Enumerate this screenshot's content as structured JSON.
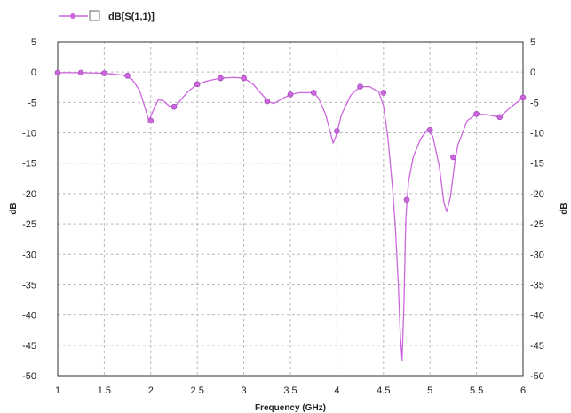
{
  "chart_data": {
    "type": "line",
    "xlabel": "Frequency (GHz)",
    "ylabel": "dB",
    "ylabel_right": "dB",
    "xlim": [
      1,
      6
    ],
    "ylim": [
      -50,
      5
    ],
    "x_ticks": [
      1,
      1.5,
      2,
      2.5,
      3,
      3.5,
      4,
      4.5,
      5,
      5.5,
      6
    ],
    "x_tick_labels": [
      "1",
      "1.5",
      "2",
      "2.5",
      "3",
      "3.5",
      "4",
      "4.5",
      "5",
      "5.5",
      "6"
    ],
    "y_ticks": [
      5,
      0,
      -5,
      -10,
      -15,
      -20,
      -25,
      -30,
      -35,
      -40,
      -45,
      -50
    ],
    "y_tick_labels": [
      "5",
      "0",
      "-5",
      "-10",
      "-15",
      "-20",
      "-25",
      "-30",
      "-35",
      "-40",
      "-45",
      "-50"
    ],
    "grid": true,
    "legend_position": "top-left",
    "series": [
      {
        "name": "dB[S(1,1)]",
        "color": "#cc66dd",
        "curve": [
          [
            1.0,
            -0.1
          ],
          [
            1.25,
            -0.1
          ],
          [
            1.5,
            -0.2
          ],
          [
            1.7,
            -0.5
          ],
          [
            1.8,
            -1.2
          ],
          [
            1.88,
            -3.0
          ],
          [
            1.95,
            -6.5
          ],
          [
            1.98,
            -8.0
          ],
          [
            2.03,
            -6.2
          ],
          [
            2.08,
            -4.6
          ],
          [
            2.13,
            -4.7
          ],
          [
            2.2,
            -5.6
          ],
          [
            2.25,
            -5.7
          ],
          [
            2.3,
            -5.0
          ],
          [
            2.4,
            -3.2
          ],
          [
            2.5,
            -2.0
          ],
          [
            2.6,
            -1.5
          ],
          [
            2.75,
            -1.0
          ],
          [
            2.9,
            -0.9
          ],
          [
            3.0,
            -1.0
          ],
          [
            3.1,
            -2.0
          ],
          [
            3.2,
            -3.8
          ],
          [
            3.27,
            -4.9
          ],
          [
            3.32,
            -5.2
          ],
          [
            3.4,
            -4.5
          ],
          [
            3.5,
            -3.7
          ],
          [
            3.6,
            -3.4
          ],
          [
            3.75,
            -3.4
          ],
          [
            3.8,
            -4.2
          ],
          [
            3.88,
            -7.0
          ],
          [
            3.93,
            -10.0
          ],
          [
            3.96,
            -11.7
          ],
          [
            3.99,
            -10.5
          ],
          [
            4.05,
            -7.0
          ],
          [
            4.15,
            -3.8
          ],
          [
            4.25,
            -2.4
          ],
          [
            4.35,
            -2.4
          ],
          [
            4.45,
            -3.3
          ],
          [
            4.5,
            -5.5
          ],
          [
            4.55,
            -11.0
          ],
          [
            4.6,
            -19.5
          ],
          [
            4.63,
            -26.0
          ],
          [
            4.66,
            -35.0
          ],
          [
            4.68,
            -43.0
          ],
          [
            4.7,
            -47.5
          ],
          [
            4.72,
            -38.0
          ],
          [
            4.74,
            -24.0
          ],
          [
            4.77,
            -18.0
          ],
          [
            4.82,
            -14.0
          ],
          [
            4.9,
            -11.0
          ],
          [
            4.97,
            -9.5
          ],
          [
            5.03,
            -10.5
          ],
          [
            5.1,
            -15.5
          ],
          [
            5.15,
            -21.5
          ],
          [
            5.18,
            -23.0
          ],
          [
            5.22,
            -20.5
          ],
          [
            5.27,
            -14.5
          ],
          [
            5.3,
            -12.0
          ],
          [
            5.4,
            -8.0
          ],
          [
            5.5,
            -6.9
          ],
          [
            5.6,
            -7.0
          ],
          [
            5.75,
            -7.4
          ],
          [
            5.85,
            -6.0
          ],
          [
            6.0,
            -4.2
          ]
        ],
        "markers": [
          [
            1.0,
            -0.1
          ],
          [
            1.25,
            -0.1
          ],
          [
            1.5,
            -0.2
          ],
          [
            1.75,
            -0.6
          ],
          [
            2.0,
            -8.0
          ],
          [
            2.25,
            -5.7
          ],
          [
            2.5,
            -2.0
          ],
          [
            2.75,
            -1.0
          ],
          [
            3.0,
            -1.0
          ],
          [
            3.25,
            -4.8
          ],
          [
            3.5,
            -3.7
          ],
          [
            3.75,
            -3.4
          ],
          [
            4.0,
            -9.7
          ],
          [
            4.25,
            -2.4
          ],
          [
            4.5,
            -3.4
          ],
          [
            4.75,
            -21.0
          ],
          [
            5.0,
            -9.5
          ],
          [
            5.25,
            -14.0
          ],
          [
            5.5,
            -6.9
          ],
          [
            5.75,
            -7.4
          ],
          [
            6.0,
            -4.2
          ]
        ]
      }
    ]
  }
}
